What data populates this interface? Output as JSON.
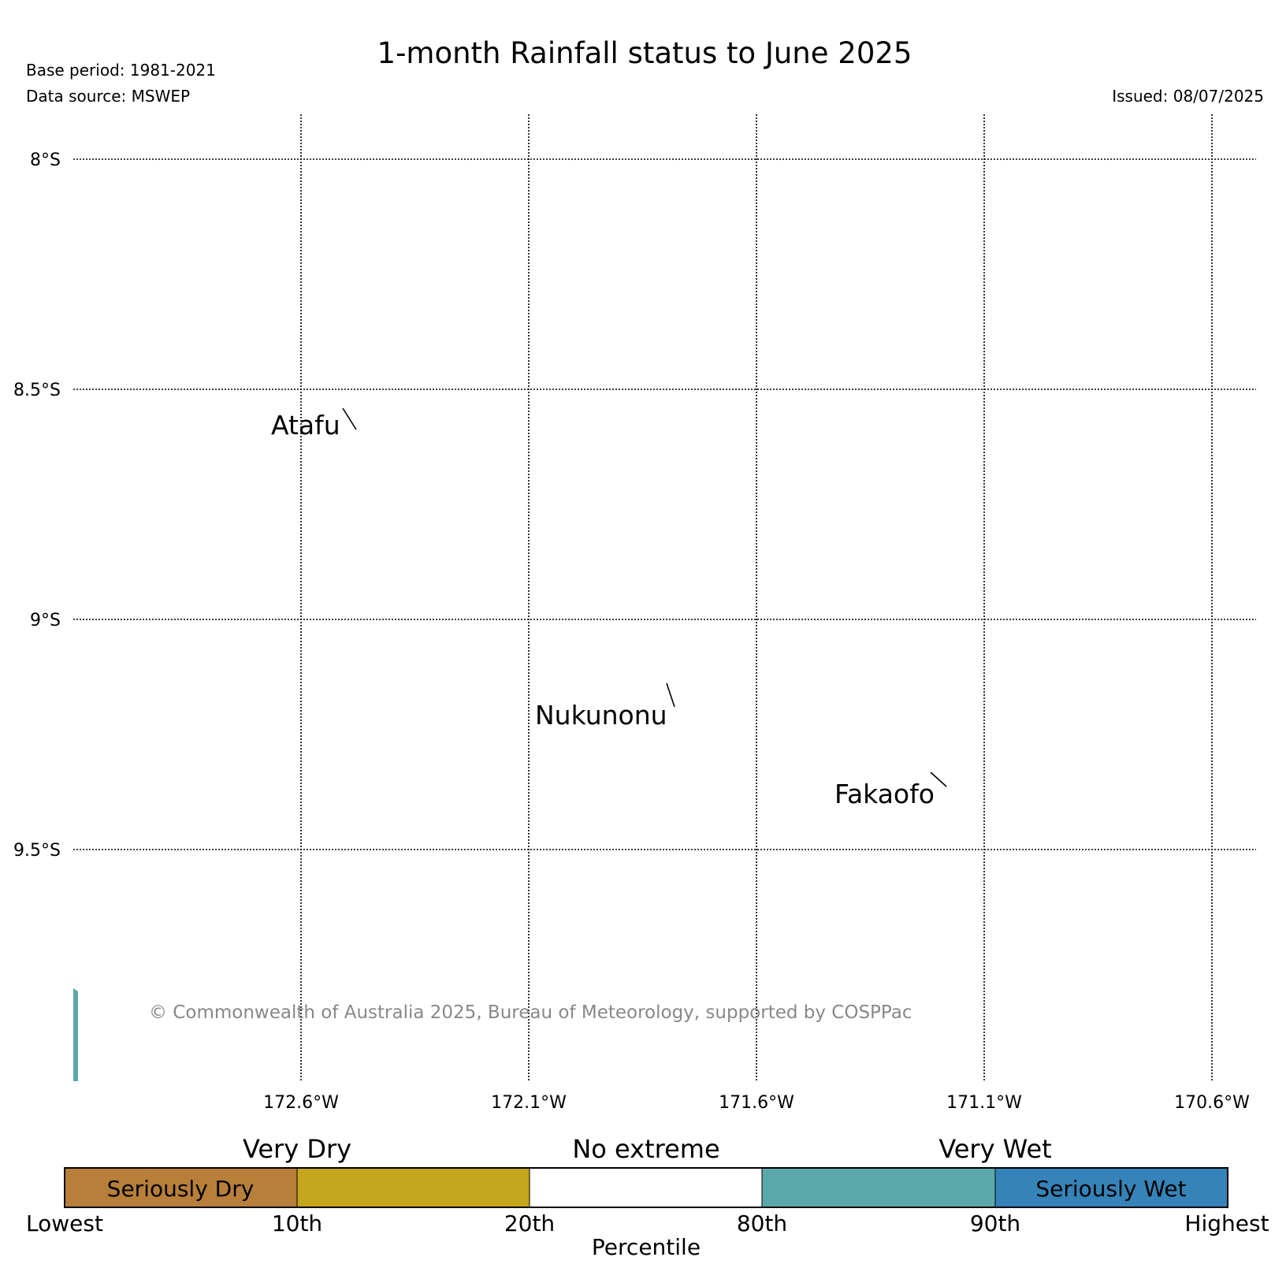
{
  "header": {
    "title": "1-month Rainfall status to June 2025",
    "base_period": "Base period: 1981-2021",
    "data_source": "Data source: MSWEP",
    "issued": "Issued: 08/07/2025"
  },
  "map": {
    "lat_labels": [
      "8°S",
      "8.5°S",
      "9°S",
      "9.5°S"
    ],
    "lon_labels": [
      "172.6°W",
      "172.1°W",
      "171.6°W",
      "171.1°W",
      "170.6°W"
    ],
    "places": [
      {
        "name": "Atafu"
      },
      {
        "name": "Nukunonu"
      },
      {
        "name": "Fakaofo"
      }
    ],
    "copyright": "© Commonwealth of Australia 2025, Bureau of Meteorology, supported by COSPPac",
    "edge_fill_color": "#5ba8ab"
  },
  "legend": {
    "group_labels": [
      "Very Dry",
      "No extreme",
      "Very Wet"
    ],
    "categories": [
      {
        "color": "#b87f3a",
        "label": "Seriously Dry"
      },
      {
        "color": "#c5a61d",
        "label": ""
      },
      {
        "color": "#ffffff",
        "label": ""
      },
      {
        "color": "#5ba8ab",
        "label": ""
      },
      {
        "color": "#3583b8",
        "label": "Seriously Wet"
      }
    ],
    "ticks": [
      "Lowest",
      "10th",
      "20th",
      "80th",
      "90th",
      "Highest"
    ],
    "xlabel": "Percentile"
  }
}
